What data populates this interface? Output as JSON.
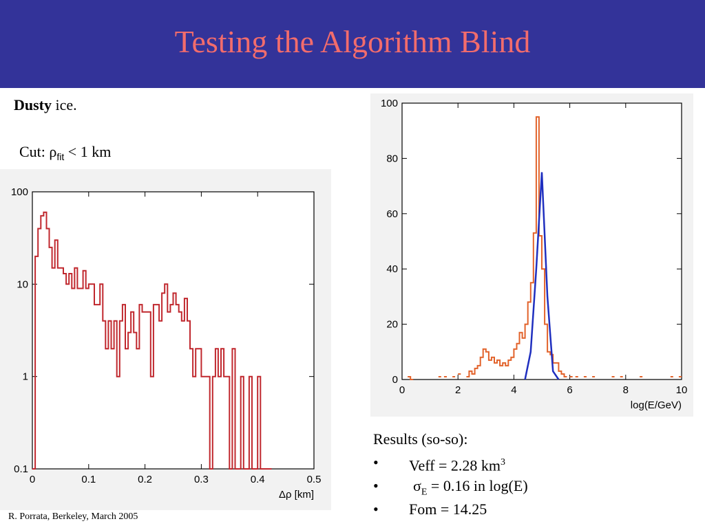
{
  "slide": {
    "title": "Testing the Algorithm Blind",
    "note_bold": "Dusty",
    "note_rest": " ice.",
    "cut_prefix": "Cut: ",
    "cut_symbol": "ρ",
    "cut_sub": "fit",
    "cut_suffix": " < 1 km",
    "results_heading": "Results (so-so):",
    "bullet_char": "•",
    "bullets": [
      {
        "text": "Veff = 2.28 km",
        "sup": "3"
      },
      {
        "symbol": "σ",
        "sub": "E",
        "text": " = 0.16 in log(E)"
      },
      {
        "text": "Fom = 14.25"
      }
    ],
    "footer": "R. Porrata, Berkeley, March 2005",
    "colors": {
      "header_bg": "#333399",
      "title": "#f26c6c",
      "hist_left": "#c0272d",
      "hist_right": "#e2622a",
      "fit": "#1f2fbf"
    }
  },
  "chart_data": [
    {
      "type": "line",
      "name": "delta-rho histogram",
      "xlabel": "Δρ [km]",
      "ylabel": "",
      "xlim": [
        0,
        0.5
      ],
      "ylim": [
        0.1,
        100
      ],
      "yscale": "log",
      "xticks": [
        0,
        0.1,
        0.2,
        0.3,
        0.4,
        0.5
      ],
      "xtick_labels": [
        "0",
        "0.1",
        "0.2",
        "0.3",
        "0.4",
        "0.5"
      ],
      "yticks": [
        0.1,
        1,
        10,
        100
      ],
      "ytick_labels": [
        "0.1",
        "1",
        "10",
        "100"
      ],
      "bin_width": 0.005,
      "x": [
        0,
        0.005,
        0.01,
        0.015,
        0.02,
        0.025,
        0.03,
        0.035,
        0.04,
        0.045,
        0.05,
        0.055,
        0.06,
        0.065,
        0.07,
        0.075,
        0.08,
        0.085,
        0.09,
        0.095,
        0.1,
        0.105,
        0.11,
        0.115,
        0.12,
        0.125,
        0.13,
        0.135,
        0.14,
        0.145,
        0.15,
        0.155,
        0.16,
        0.165,
        0.17,
        0.175,
        0.18,
        0.185,
        0.19,
        0.195,
        0.2,
        0.205,
        0.21,
        0.215,
        0.22,
        0.225,
        0.23,
        0.235,
        0.24,
        0.245,
        0.25,
        0.255,
        0.26,
        0.265,
        0.27,
        0.275,
        0.28,
        0.285,
        0.29,
        0.295,
        0.3,
        0.305,
        0.31,
        0.315,
        0.32,
        0.325,
        0.33,
        0.335,
        0.34,
        0.345,
        0.35,
        0.355,
        0.36,
        0.365,
        0.37,
        0.375,
        0.38,
        0.385,
        0.39,
        0.395,
        0.4,
        0.405,
        0.41,
        0.415,
        0.42
      ],
      "values": [
        0.1,
        20,
        40,
        55,
        60,
        40,
        25,
        15,
        30,
        15,
        15,
        13,
        10,
        13,
        9,
        15,
        9,
        9,
        14,
        9,
        10,
        10,
        6,
        6,
        10,
        4,
        2,
        4,
        2,
        4,
        1,
        4,
        6,
        2,
        3,
        5,
        3,
        2,
        6,
        5,
        5,
        5,
        1,
        6,
        6,
        4,
        8,
        10,
        5,
        6,
        8,
        6,
        5,
        4,
        7,
        4,
        2,
        1,
        2,
        2,
        1,
        1,
        1,
        0.1,
        1,
        2,
        1,
        2,
        1,
        1,
        0.1,
        2,
        0.1,
        0.1,
        1,
        0.1,
        0.1,
        1,
        0.1,
        0.1,
        1,
        0.1,
        0.1,
        0.1,
        0.1
      ]
    },
    {
      "type": "line",
      "name": "energy reconstruction",
      "xlabel": "log(E/GeV)",
      "ylabel": "",
      "xlim": [
        0,
        10
      ],
      "ylim": [
        0,
        100
      ],
      "xticks": [
        0,
        2,
        4,
        6,
        8,
        10
      ],
      "xtick_labels": [
        "0",
        "2",
        "4",
        "6",
        "8",
        "10"
      ],
      "yticks": [
        0,
        20,
        40,
        60,
        80,
        100
      ],
      "ytick_labels": [
        "0",
        "20",
        "40",
        "60",
        "80",
        "100"
      ],
      "bin_width": 0.1,
      "x": [
        0.2,
        0.3,
        1.3,
        1.5,
        1.8,
        2.0,
        2.3,
        2.4,
        2.5,
        2.6,
        2.7,
        2.8,
        2.9,
        3.0,
        3.1,
        3.2,
        3.3,
        3.4,
        3.5,
        3.6,
        3.7,
        3.8,
        3.9,
        4.0,
        4.1,
        4.2,
        4.3,
        4.4,
        4.5,
        4.6,
        4.7,
        4.8,
        4.9,
        5.0,
        5.1,
        5.2,
        5.3,
        5.4,
        5.5,
        5.6,
        5.7,
        5.8,
        6.0,
        6.2,
        6.5,
        6.8,
        7.5,
        7.8,
        8.5,
        9.6,
        9.9
      ],
      "values": [
        1,
        0,
        1,
        1,
        1,
        2,
        1,
        3,
        2,
        4,
        5,
        8,
        11,
        10,
        7,
        8,
        6,
        7,
        5,
        6,
        5,
        7,
        8,
        11,
        13,
        17,
        15,
        20,
        28,
        35,
        53,
        95,
        52,
        40,
        20,
        10,
        9,
        6,
        6,
        3,
        2,
        1,
        1,
        1,
        1,
        1,
        1,
        1,
        1,
        1,
        1
      ],
      "fit_curve": {
        "x": [
          4.4,
          4.6,
          4.8,
          5.0,
          5.2,
          5.4,
          5.6
        ],
        "values": [
          0,
          10,
          40,
          75,
          30,
          3,
          0
        ]
      }
    }
  ]
}
